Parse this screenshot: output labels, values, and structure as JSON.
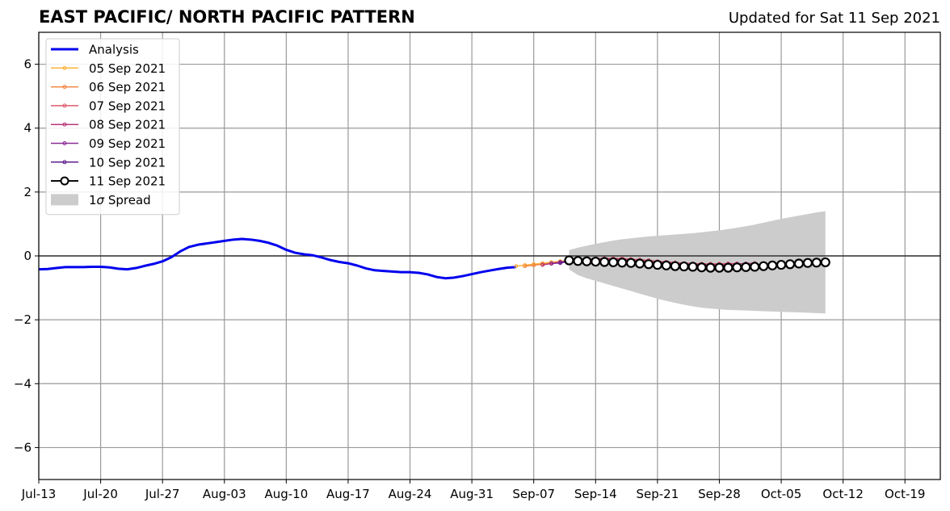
{
  "header": {
    "title": "EAST PACIFIC/ NORTH PACIFIC PATTERN",
    "updated": "Updated for Sat 11 Sep 2021"
  },
  "chart_data": {
    "type": "line",
    "title": "EAST PACIFIC/ NORTH PACIFIC PATTERN",
    "subtitle": "Updated for Sat 11 Sep 2021",
    "xlabel": "",
    "ylabel": "",
    "xlim": [
      "2021-07-13",
      "2021-10-23"
    ],
    "ylim": [
      -7,
      7
    ],
    "x_ticks": [
      "Jul-13",
      "Jul-20",
      "Jul-27",
      "Aug-03",
      "Aug-10",
      "Aug-17",
      "Aug-24",
      "Aug-31",
      "Sep-07",
      "Sep-14",
      "Sep-21",
      "Sep-28",
      "Oct-05",
      "Oct-12",
      "Oct-19"
    ],
    "x_tick_dates": [
      "2021-07-13",
      "2021-07-20",
      "2021-07-27",
      "2021-08-03",
      "2021-08-10",
      "2021-08-17",
      "2021-08-24",
      "2021-08-31",
      "2021-09-07",
      "2021-09-14",
      "2021-09-21",
      "2021-09-28",
      "2021-10-05",
      "2021-10-12",
      "2021-10-19"
    ],
    "y_ticks": [
      -6,
      -4,
      -2,
      0,
      2,
      4,
      6
    ],
    "grid": true,
    "legend_position": "top-left",
    "series": [
      {
        "name": "Analysis",
        "color": "#0000ee",
        "style": "line",
        "points": [
          [
            "2021-07-13",
            -0.42
          ],
          [
            "2021-07-14",
            -0.41
          ],
          [
            "2021-07-15",
            -0.38
          ],
          [
            "2021-07-16",
            -0.35
          ],
          [
            "2021-07-17",
            -0.35
          ],
          [
            "2021-07-18",
            -0.35
          ],
          [
            "2021-07-19",
            -0.34
          ],
          [
            "2021-07-20",
            -0.34
          ],
          [
            "2021-07-21",
            -0.36
          ],
          [
            "2021-07-22",
            -0.4
          ],
          [
            "2021-07-23",
            -0.42
          ],
          [
            "2021-07-24",
            -0.38
          ],
          [
            "2021-07-25",
            -0.31
          ],
          [
            "2021-07-26",
            -0.25
          ],
          [
            "2021-07-27",
            -0.17
          ],
          [
            "2021-07-28",
            -0.04
          ],
          [
            "2021-07-29",
            0.14
          ],
          [
            "2021-07-30",
            0.28
          ],
          [
            "2021-07-31",
            0.35
          ],
          [
            "2021-08-01",
            0.39
          ],
          [
            "2021-08-02",
            0.43
          ],
          [
            "2021-08-03",
            0.47
          ],
          [
            "2021-08-04",
            0.51
          ],
          [
            "2021-08-05",
            0.53
          ],
          [
            "2021-08-06",
            0.51
          ],
          [
            "2021-08-07",
            0.47
          ],
          [
            "2021-08-08",
            0.41
          ],
          [
            "2021-08-09",
            0.32
          ],
          [
            "2021-08-10",
            0.19
          ],
          [
            "2021-08-11",
            0.1
          ],
          [
            "2021-08-12",
            0.05
          ],
          [
            "2021-08-13",
            0.02
          ],
          [
            "2021-08-14",
            -0.05
          ],
          [
            "2021-08-15",
            -0.13
          ],
          [
            "2021-08-16",
            -0.19
          ],
          [
            "2021-08-17",
            -0.23
          ],
          [
            "2021-08-18",
            -0.3
          ],
          [
            "2021-08-19",
            -0.39
          ],
          [
            "2021-08-20",
            -0.45
          ],
          [
            "2021-08-21",
            -0.47
          ],
          [
            "2021-08-22",
            -0.49
          ],
          [
            "2021-08-23",
            -0.51
          ],
          [
            "2021-08-24",
            -0.51
          ],
          [
            "2021-08-25",
            -0.53
          ],
          [
            "2021-08-26",
            -0.58
          ],
          [
            "2021-08-27",
            -0.66
          ],
          [
            "2021-08-28",
            -0.7
          ],
          [
            "2021-08-29",
            -0.68
          ],
          [
            "2021-08-30",
            -0.63
          ],
          [
            "2021-08-31",
            -0.57
          ],
          [
            "2021-09-01",
            -0.51
          ],
          [
            "2021-09-02",
            -0.46
          ],
          [
            "2021-09-03",
            -0.41
          ],
          [
            "2021-09-04",
            -0.37
          ],
          [
            "2021-09-05",
            -0.35
          ]
        ]
      },
      {
        "name": "05 Sep 2021",
        "color": "#fdb33c",
        "style": "line-dot",
        "points": [
          [
            "2021-09-05",
            -0.32
          ],
          [
            "2021-09-06",
            -0.29
          ],
          [
            "2021-09-07",
            -0.26
          ],
          [
            "2021-09-08",
            -0.23
          ],
          [
            "2021-09-09",
            -0.2
          ],
          [
            "2021-09-10",
            -0.17
          ],
          [
            "2021-09-11",
            -0.15
          ]
        ]
      },
      {
        "name": "06 Sep 2021",
        "color": "#f2843e",
        "style": "line-dot",
        "points": [
          [
            "2021-09-06",
            -0.32
          ],
          [
            "2021-09-07",
            -0.29
          ],
          [
            "2021-09-08",
            -0.26
          ],
          [
            "2021-09-09",
            -0.22
          ],
          [
            "2021-09-10",
            -0.18
          ],
          [
            "2021-09-11",
            -0.15
          ]
        ]
      },
      {
        "name": "07 Sep 2021",
        "color": "#dd5b6e",
        "style": "line-dot",
        "points": [
          [
            "2021-09-11",
            -0.12
          ],
          [
            "2021-09-12",
            -0.11
          ],
          [
            "2021-09-13",
            -0.1
          ],
          [
            "2021-09-14",
            -0.09
          ],
          [
            "2021-09-15",
            -0.08
          ],
          [
            "2021-09-16",
            -0.08
          ],
          [
            "2021-09-17",
            -0.08
          ],
          [
            "2021-09-18",
            -0.1
          ],
          [
            "2021-09-19",
            -0.12
          ],
          [
            "2021-09-20",
            -0.14
          ],
          [
            "2021-09-21",
            -0.17
          ],
          [
            "2021-09-22",
            -0.19
          ],
          [
            "2021-09-23",
            -0.21
          ],
          [
            "2021-09-24",
            -0.23
          ],
          [
            "2021-09-25",
            -0.24
          ],
          [
            "2021-09-26",
            -0.25
          ],
          [
            "2021-09-27",
            -0.25
          ],
          [
            "2021-09-28",
            -0.25
          ],
          [
            "2021-09-29",
            -0.24
          ],
          [
            "2021-09-30",
            -0.24
          ]
        ]
      },
      {
        "name": "08 Sep 2021",
        "color": "#b73779",
        "style": "line-dot",
        "points": [
          [
            "2021-09-08",
            -0.28
          ],
          [
            "2021-09-09",
            -0.24
          ],
          [
            "2021-09-10",
            -0.2
          ],
          [
            "2021-09-11",
            -0.14
          ],
          [
            "2021-09-12",
            -0.11
          ],
          [
            "2021-09-13",
            -0.1
          ],
          [
            "2021-09-14",
            -0.09
          ],
          [
            "2021-09-15",
            -0.09
          ],
          [
            "2021-09-16",
            -0.1
          ],
          [
            "2021-09-17",
            -0.11
          ],
          [
            "2021-09-18",
            -0.13
          ],
          [
            "2021-09-19",
            -0.15
          ],
          [
            "2021-09-20",
            -0.17
          ],
          [
            "2021-09-21",
            -0.19
          ],
          [
            "2021-09-22",
            -0.21
          ],
          [
            "2021-09-23",
            -0.23
          ],
          [
            "2021-09-24",
            -0.25
          ],
          [
            "2021-09-25",
            -0.26
          ],
          [
            "2021-09-26",
            -0.27
          ],
          [
            "2021-09-27",
            -0.27
          ],
          [
            "2021-09-28",
            -0.27
          ],
          [
            "2021-09-29",
            -0.26
          ],
          [
            "2021-09-30",
            -0.25
          ],
          [
            "2021-10-01",
            -0.24
          ],
          [
            "2021-10-02",
            -0.23
          ]
        ]
      },
      {
        "name": "09 Sep 2021",
        "color": "#8c2a96",
        "style": "line-dot",
        "points": [
          [
            "2021-09-09",
            -0.24
          ],
          [
            "2021-09-10",
            -0.22
          ],
          [
            "2021-09-11",
            -0.17
          ],
          [
            "2021-09-12",
            -0.14
          ],
          [
            "2021-09-13",
            -0.12
          ],
          [
            "2021-09-14",
            -0.12
          ],
          [
            "2021-09-15",
            -0.13
          ],
          [
            "2021-09-16",
            -0.14
          ],
          [
            "2021-09-17",
            -0.16
          ],
          [
            "2021-09-18",
            -0.18
          ],
          [
            "2021-09-19",
            -0.2
          ],
          [
            "2021-09-20",
            -0.22
          ],
          [
            "2021-09-21",
            -0.24
          ],
          [
            "2021-09-22",
            -0.26
          ],
          [
            "2021-09-23",
            -0.28
          ],
          [
            "2021-09-24",
            -0.3
          ],
          [
            "2021-09-25",
            -0.31
          ],
          [
            "2021-09-26",
            -0.32
          ],
          [
            "2021-09-27",
            -0.32
          ],
          [
            "2021-09-28",
            -0.32
          ],
          [
            "2021-09-29",
            -0.31
          ],
          [
            "2021-09-30",
            -0.3
          ],
          [
            "2021-10-01",
            -0.29
          ],
          [
            "2021-10-02",
            -0.28
          ],
          [
            "2021-10-03",
            -0.27
          ]
        ]
      },
      {
        "name": "10 Sep 2021",
        "color": "#5d1e8e",
        "style": "line-dot",
        "points": [
          [
            "2021-09-10",
            -0.21
          ],
          [
            "2021-09-11",
            -0.17
          ],
          [
            "2021-09-12",
            -0.15
          ],
          [
            "2021-09-13",
            -0.14
          ],
          [
            "2021-09-14",
            -0.15
          ],
          [
            "2021-09-15",
            -0.16
          ],
          [
            "2021-09-16",
            -0.18
          ],
          [
            "2021-09-17",
            -0.2
          ],
          [
            "2021-09-18",
            -0.22
          ],
          [
            "2021-09-19",
            -0.24
          ],
          [
            "2021-09-20",
            -0.26
          ],
          [
            "2021-09-21",
            -0.28
          ],
          [
            "2021-09-22",
            -0.3
          ],
          [
            "2021-09-23",
            -0.32
          ],
          [
            "2021-09-24",
            -0.33
          ],
          [
            "2021-09-25",
            -0.34
          ],
          [
            "2021-09-26",
            -0.35
          ],
          [
            "2021-09-27",
            -0.35
          ],
          [
            "2021-09-28",
            -0.35
          ],
          [
            "2021-09-29",
            -0.34
          ],
          [
            "2021-09-30",
            -0.33
          ],
          [
            "2021-10-01",
            -0.32
          ],
          [
            "2021-10-02",
            -0.31
          ],
          [
            "2021-10-03",
            -0.3
          ],
          [
            "2021-10-04",
            -0.29
          ]
        ]
      },
      {
        "name": "11 Sep 2021",
        "color": "#000000",
        "style": "line-open-circle",
        "points": [
          [
            "2021-09-11",
            -0.14
          ],
          [
            "2021-09-12",
            -0.16
          ],
          [
            "2021-09-13",
            -0.17
          ],
          [
            "2021-09-14",
            -0.18
          ],
          [
            "2021-09-15",
            -0.19
          ],
          [
            "2021-09-16",
            -0.2
          ],
          [
            "2021-09-17",
            -0.21
          ],
          [
            "2021-09-18",
            -0.22
          ],
          [
            "2021-09-19",
            -0.24
          ],
          [
            "2021-09-20",
            -0.26
          ],
          [
            "2021-09-21",
            -0.28
          ],
          [
            "2021-09-22",
            -0.3
          ],
          [
            "2021-09-23",
            -0.32
          ],
          [
            "2021-09-24",
            -0.33
          ],
          [
            "2021-09-25",
            -0.34
          ],
          [
            "2021-09-26",
            -0.36
          ],
          [
            "2021-09-27",
            -0.37
          ],
          [
            "2021-09-28",
            -0.37
          ],
          [
            "2021-09-29",
            -0.37
          ],
          [
            "2021-09-30",
            -0.36
          ],
          [
            "2021-10-01",
            -0.35
          ],
          [
            "2021-10-02",
            -0.34
          ],
          [
            "2021-10-03",
            -0.32
          ],
          [
            "2021-10-04",
            -0.3
          ],
          [
            "2021-10-05",
            -0.28
          ],
          [
            "2021-10-06",
            -0.26
          ],
          [
            "2021-10-07",
            -0.24
          ],
          [
            "2021-10-08",
            -0.22
          ],
          [
            "2021-10-09",
            -0.21
          ],
          [
            "2021-10-10",
            -0.2
          ]
        ]
      }
    ],
    "spread": {
      "name": "1σ Spread",
      "legend_label_prefix": "1",
      "legend_label_sigma": "σ",
      "legend_label_suffix": " Spread",
      "color": "#cccccc",
      "upper": [
        [
          "2021-09-11",
          0.18
        ],
        [
          "2021-09-12",
          0.26
        ],
        [
          "2021-09-13",
          0.32
        ],
        [
          "2021-09-14",
          0.38
        ],
        [
          "2021-09-15",
          0.43
        ],
        [
          "2021-09-16",
          0.48
        ],
        [
          "2021-09-17",
          0.52
        ],
        [
          "2021-09-18",
          0.55
        ],
        [
          "2021-09-19",
          0.58
        ],
        [
          "2021-09-20",
          0.61
        ],
        [
          "2021-09-21",
          0.63
        ],
        [
          "2021-09-22",
          0.65
        ],
        [
          "2021-09-23",
          0.67
        ],
        [
          "2021-09-24",
          0.69
        ],
        [
          "2021-09-25",
          0.71
        ],
        [
          "2021-09-26",
          0.74
        ],
        [
          "2021-09-27",
          0.77
        ],
        [
          "2021-09-28",
          0.8
        ],
        [
          "2021-09-29",
          0.84
        ],
        [
          "2021-09-30",
          0.88
        ],
        [
          "2021-10-01",
          0.93
        ],
        [
          "2021-10-02",
          0.98
        ],
        [
          "2021-10-03",
          1.04
        ],
        [
          "2021-10-04",
          1.1
        ],
        [
          "2021-10-05",
          1.16
        ],
        [
          "2021-10-06",
          1.21
        ],
        [
          "2021-10-07",
          1.26
        ],
        [
          "2021-10-08",
          1.31
        ],
        [
          "2021-10-09",
          1.36
        ],
        [
          "2021-10-10",
          1.4
        ]
      ],
      "lower": [
        [
          "2021-09-11",
          -0.42
        ],
        [
          "2021-09-12",
          -0.6
        ],
        [
          "2021-09-13",
          -0.7
        ],
        [
          "2021-09-14",
          -0.78
        ],
        [
          "2021-09-15",
          -0.86
        ],
        [
          "2021-09-16",
          -0.94
        ],
        [
          "2021-09-17",
          -1.02
        ],
        [
          "2021-09-18",
          -1.1
        ],
        [
          "2021-09-19",
          -1.18
        ],
        [
          "2021-09-20",
          -1.26
        ],
        [
          "2021-09-21",
          -1.34
        ],
        [
          "2021-09-22",
          -1.41
        ],
        [
          "2021-09-23",
          -1.47
        ],
        [
          "2021-09-24",
          -1.53
        ],
        [
          "2021-09-25",
          -1.58
        ],
        [
          "2021-09-26",
          -1.62
        ],
        [
          "2021-09-27",
          -1.65
        ],
        [
          "2021-09-28",
          -1.67
        ],
        [
          "2021-09-29",
          -1.69
        ],
        [
          "2021-09-30",
          -1.7
        ],
        [
          "2021-10-01",
          -1.71
        ],
        [
          "2021-10-02",
          -1.72
        ],
        [
          "2021-10-03",
          -1.73
        ],
        [
          "2021-10-04",
          -1.74
        ],
        [
          "2021-10-05",
          -1.75
        ],
        [
          "2021-10-06",
          -1.76
        ],
        [
          "2021-10-07",
          -1.77
        ],
        [
          "2021-10-08",
          -1.78
        ],
        [
          "2021-10-09",
          -1.79
        ],
        [
          "2021-10-10",
          -1.8
        ]
      ]
    },
    "zero_line": true
  }
}
